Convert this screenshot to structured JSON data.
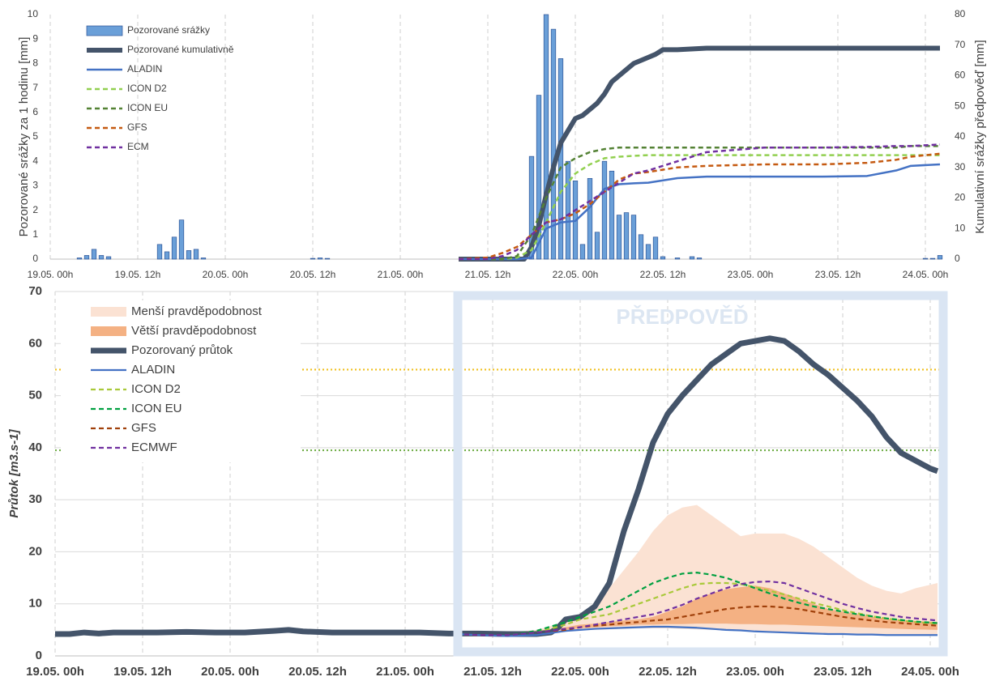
{
  "chart_data": [
    {
      "type": "combo",
      "ylabel": "Pozorované srážky za 1 hodinu [mm]",
      "y2label": "Kumulativní srážky předpověď [mm]",
      "xlim": [
        0,
        122
      ],
      "xticks": [
        {
          "value": 0,
          "label": "19.05. 00h"
        },
        {
          "value": 12,
          "label": "19.05. 12h"
        },
        {
          "value": 24,
          "label": "20.05. 00h"
        },
        {
          "value": 36,
          "label": "20.05. 12h"
        },
        {
          "value": 48,
          "label": "21.05. 00h"
        },
        {
          "value": 60,
          "label": "21.05. 12h"
        },
        {
          "value": 72,
          "label": "22.05. 00h"
        },
        {
          "value": 84,
          "label": "22.05. 12h"
        },
        {
          "value": 96,
          "label": "23.05. 00h"
        },
        {
          "value": 108,
          "label": "23.05. 12h"
        },
        {
          "value": 120,
          "label": "24.05. 00h"
        }
      ],
      "ylim": [
        0,
        10
      ],
      "yticks": [
        0,
        1,
        2,
        3,
        4,
        5,
        6,
        7,
        8,
        9,
        10
      ],
      "y2lim": [
        0,
        80
      ],
      "y2ticks": [
        0,
        10,
        20,
        30,
        40,
        50,
        60,
        70,
        80
      ],
      "grid": "x",
      "legend": "upper left",
      "x": [
        56,
        60,
        62,
        64,
        66,
        68,
        70,
        72,
        74,
        76,
        78,
        80,
        82,
        86,
        90,
        98,
        106,
        112,
        116,
        118,
        122
      ],
      "series": [
        {
          "name": "Pozorované srážky",
          "type": "bar",
          "color": "#6a9fd8",
          "x": [
            4,
            5,
            6,
            7,
            8,
            15,
            16,
            17,
            18,
            19,
            20,
            21,
            36,
            37,
            38,
            66,
            67,
            68,
            69,
            70,
            71,
            72,
            73,
            74,
            75,
            76,
            77,
            78,
            79,
            80,
            81,
            82,
            83,
            84,
            86,
            88,
            89,
            120,
            121,
            122
          ],
          "values": [
            0.05,
            0.15,
            0.4,
            0.15,
            0.1,
            0.6,
            0.3,
            0.9,
            1.6,
            0.35,
            0.4,
            0.05,
            0.03,
            0.05,
            0.03,
            4.2,
            6.7,
            10,
            9.4,
            8.2,
            4.0,
            3.2,
            0.6,
            3.3,
            1.1,
            4.0,
            3.6,
            1.8,
            1.9,
            1.8,
            1.0,
            0.6,
            0.9,
            0.1,
            0.05,
            0.1,
            0.05,
            0.03,
            0.03,
            0.15
          ]
        },
        {
          "name": "Pozorované kumulativně",
          "type": "line",
          "axis": "y2",
          "color": "#44546a",
          "linestyle": "solid",
          "x": [
            56,
            65,
            66,
            67,
            68,
            69,
            70,
            71,
            72,
            73,
            74,
            75,
            76,
            77,
            78,
            79,
            80,
            81,
            82,
            83,
            84,
            86,
            90,
            98,
            122
          ],
          "values": [
            0,
            0,
            4,
            11,
            21,
            30,
            38,
            42,
            46,
            47,
            49,
            51,
            54,
            58,
            60,
            62,
            64,
            65,
            66,
            67,
            68.5,
            68.5,
            69,
            69,
            69
          ]
        },
        {
          "name": "ALADIN",
          "type": "line",
          "axis": "y2",
          "color": "#4472c4",
          "linestyle": "solid",
          "values": [
            0,
            0,
            0,
            0,
            0.5,
            10,
            12,
            12.5,
            17,
            23,
            24.5,
            24.8,
            25,
            26.5,
            27,
            27,
            27,
            27.2,
            29,
            30.5,
            31
          ]
        },
        {
          "name": "ICON D2",
          "type": "line",
          "axis": "y2",
          "color": "#92d050",
          "linestyle": "dashed",
          "values": [
            0,
            0,
            0,
            0.5,
            3,
            12,
            22,
            28,
            31,
            33,
            33.5,
            33.8,
            34,
            34,
            34,
            34,
            34,
            34,
            34,
            34,
            34
          ]
        },
        {
          "name": "ICON EU",
          "type": "line",
          "axis": "y2",
          "color": "#548235",
          "linestyle": "dashed",
          "values": [
            0,
            0,
            0,
            1,
            8,
            20,
            30,
            33,
            35,
            36,
            36.5,
            36.5,
            36.5,
            36.5,
            36.5,
            36.5,
            36.5,
            36.5,
            36.5,
            37,
            37
          ]
        },
        {
          "name": "GFS",
          "type": "line",
          "axis": "y2",
          "color": "#c55a11",
          "linestyle": "dashed",
          "values": [
            0,
            0.5,
            2,
            4,
            8,
            12,
            13,
            15,
            18,
            22,
            26,
            28,
            28.5,
            30,
            30.5,
            31,
            31,
            31.5,
            32.5,
            33.5,
            34.5
          ]
        },
        {
          "name": "ECM",
          "type": "line",
          "axis": "y2",
          "color": "#7030a0",
          "linestyle": "dashed",
          "values": [
            0,
            0,
            1,
            3,
            8,
            12,
            13,
            16,
            19,
            22,
            25,
            28,
            29,
            32,
            35,
            36.5,
            36.5,
            36.7,
            37,
            37,
            37.5
          ]
        }
      ]
    },
    {
      "type": "area-line",
      "ylabel": "Průtok [m3.s-1]",
      "annotation": "PŘEDPOVĚĎ",
      "xlim": [
        0,
        122
      ],
      "xticks": [
        {
          "value": 0,
          "label": "19.05. 00h"
        },
        {
          "value": 12,
          "label": "19.05. 12h"
        },
        {
          "value": 24,
          "label": "20.05. 00h"
        },
        {
          "value": 36,
          "label": "20.05. 12h"
        },
        {
          "value": 48,
          "label": "21.05. 00h"
        },
        {
          "value": 60,
          "label": "21.05. 12h"
        },
        {
          "value": 72,
          "label": "22.05. 00h"
        },
        {
          "value": 84,
          "label": "22.05. 12h"
        },
        {
          "value": 96,
          "label": "23.05. 00h"
        },
        {
          "value": 108,
          "label": "23.05. 12h"
        },
        {
          "value": 120,
          "label": "24.05. 00h"
        }
      ],
      "ylim": [
        0,
        70
      ],
      "yticks": [
        0,
        10,
        20,
        30,
        40,
        50,
        60,
        70
      ],
      "grid": "both",
      "legend": "upper left",
      "thresholds": [
        {
          "value": 55,
          "color": "#f0c020"
        },
        {
          "value": 39.5,
          "color": "#70ad47"
        }
      ],
      "x": [
        55,
        58,
        62,
        66,
        70,
        72,
        74,
        76,
        78,
        80,
        82,
        84,
        86,
        88,
        90,
        92,
        94,
        96,
        98,
        100,
        102,
        104,
        106,
        108,
        110,
        112,
        114,
        116,
        118,
        121
      ],
      "series": [
        {
          "name": "Menší pravděpodobnost",
          "type": "band",
          "color": "#fbe2d3",
          "upper": [
            4.2,
            4.5,
            4.5,
            5,
            6.5,
            8,
            10,
            13,
            16.5,
            20,
            24,
            27,
            28.5,
            29,
            27,
            25,
            23,
            23.5,
            23.5,
            23.5,
            22.5,
            21,
            19,
            17,
            15,
            13.5,
            12.5,
            12,
            13,
            14
          ],
          "lower": [
            4,
            4,
            3.8,
            4,
            4.7,
            4.9,
            5,
            5.1,
            5.2,
            5.3,
            5.3,
            5.3,
            5.2,
            5.1,
            5,
            4.9,
            4.8,
            4.7,
            4.6,
            4.5,
            4.4,
            4.3,
            4.2,
            4.2,
            4.1,
            4.1,
            4,
            4,
            4,
            4
          ]
        },
        {
          "name": "Větší pravděpodobnost",
          "type": "band",
          "color": "#f4b183",
          "upper": [
            4.2,
            4.2,
            4.3,
            4.8,
            5.5,
            6,
            6.2,
            6.5,
            6.8,
            7,
            7.5,
            8.5,
            9.5,
            11,
            12,
            12.8,
            13.2,
            13.5,
            13,
            12,
            11,
            10,
            9,
            8.5,
            8,
            7.5,
            7.2,
            6.9,
            6.7,
            6.5
          ],
          "lower": [
            4.2,
            4.1,
            4.1,
            4.5,
            5,
            5.3,
            5.5,
            5.7,
            5.8,
            6,
            6,
            6.1,
            6.1,
            6.2,
            6.2,
            6.2,
            6.1,
            6.1,
            6,
            6,
            5.9,
            5.8,
            5.7,
            5.6,
            5.5,
            5.4,
            5.3,
            5.2,
            5.1,
            5
          ]
        },
        {
          "name": "Pozorovaný průtok",
          "type": "line",
          "color": "#44546a",
          "linestyle": "solid",
          "x": [
            0,
            2,
            4,
            6,
            8,
            10,
            14,
            18,
            22,
            26,
            30,
            32,
            34,
            38,
            42,
            46,
            50,
            54,
            58,
            62,
            66,
            68,
            69,
            70,
            72,
            74,
            76,
            78,
            80,
            82,
            84,
            86,
            88,
            90,
            92,
            94,
            96,
            98,
            100,
            102,
            104,
            106,
            108,
            110,
            112,
            114,
            116,
            118,
            120,
            121
          ],
          "values": [
            4.2,
            4.2,
            4.5,
            4.3,
            4.5,
            4.5,
            4.5,
            4.6,
            4.5,
            4.5,
            4.8,
            5,
            4.7,
            4.5,
            4.5,
            4.5,
            4.5,
            4.3,
            4.3,
            4.2,
            4.2,
            4.5,
            5.5,
            7,
            7.5,
            9.5,
            14,
            24,
            32,
            41,
            46.5,
            50,
            53,
            56,
            58,
            60,
            60.5,
            61,
            60.5,
            58.5,
            56,
            54,
            51.5,
            49,
            46,
            42,
            39,
            37.5,
            36,
            35.5
          ]
        },
        {
          "name": "ALADIN",
          "type": "line",
          "color": "#4472c4",
          "linestyle": "solid",
          "values": [
            4.2,
            4,
            3.8,
            4,
            4.8,
            5,
            5.2,
            5.3,
            5.4,
            5.5,
            5.6,
            5.6,
            5.5,
            5.4,
            5.2,
            5,
            4.9,
            4.7,
            4.6,
            4.5,
            4.4,
            4.3,
            4.2,
            4.2,
            4.1,
            4.1,
            4,
            4,
            4,
            4
          ]
        },
        {
          "name": "ICON D2",
          "type": "line",
          "color": "#a9c93a",
          "linestyle": "dashed",
          "values": [
            4.2,
            4,
            4,
            4.5,
            6,
            7,
            7.5,
            8,
            9,
            10,
            11,
            12,
            13,
            13.8,
            14,
            14,
            13.8,
            13.2,
            12.5,
            11.8,
            11,
            10.2,
            9.5,
            8.8,
            8.2,
            7.6,
            7.2,
            6.8,
            6.5,
            6.2
          ]
        },
        {
          "name": "ICON EU",
          "type": "line",
          "color": "#00a040",
          "linestyle": "dashed",
          "values": [
            4.2,
            4,
            4,
            4.8,
            6.5,
            7.5,
            8.5,
            9.5,
            11,
            12.5,
            14,
            15,
            15.8,
            16,
            15.6,
            15,
            14,
            13,
            12,
            11,
            10.2,
            9.5,
            9,
            8.5,
            8,
            7.6,
            7.2,
            6.9,
            6.6,
            6.3
          ]
        },
        {
          "name": "GFS",
          "type": "line",
          "color": "#a0400a",
          "linestyle": "dashed",
          "values": [
            4.2,
            4,
            4,
            4.5,
            5,
            5.5,
            5.8,
            6,
            6.3,
            6.5,
            6.8,
            7,
            7.5,
            8,
            8.5,
            9,
            9.3,
            9.5,
            9.5,
            9.3,
            9,
            8.5,
            8,
            7.5,
            7.1,
            6.8,
            6.5,
            6.3,
            6.1,
            5.8
          ]
        },
        {
          "name": "ECMWF",
          "type": "line",
          "color": "#7030a0",
          "linestyle": "dashed",
          "values": [
            4.2,
            4,
            4,
            4.5,
            5.2,
            5.5,
            6,
            6.5,
            7,
            7.5,
            8,
            8.8,
            9.8,
            11,
            12,
            13,
            13.8,
            14.2,
            14.3,
            14,
            13,
            12,
            11,
            10,
            9.2,
            8.5,
            8,
            7.5,
            7.2,
            6.8
          ]
        }
      ]
    }
  ]
}
